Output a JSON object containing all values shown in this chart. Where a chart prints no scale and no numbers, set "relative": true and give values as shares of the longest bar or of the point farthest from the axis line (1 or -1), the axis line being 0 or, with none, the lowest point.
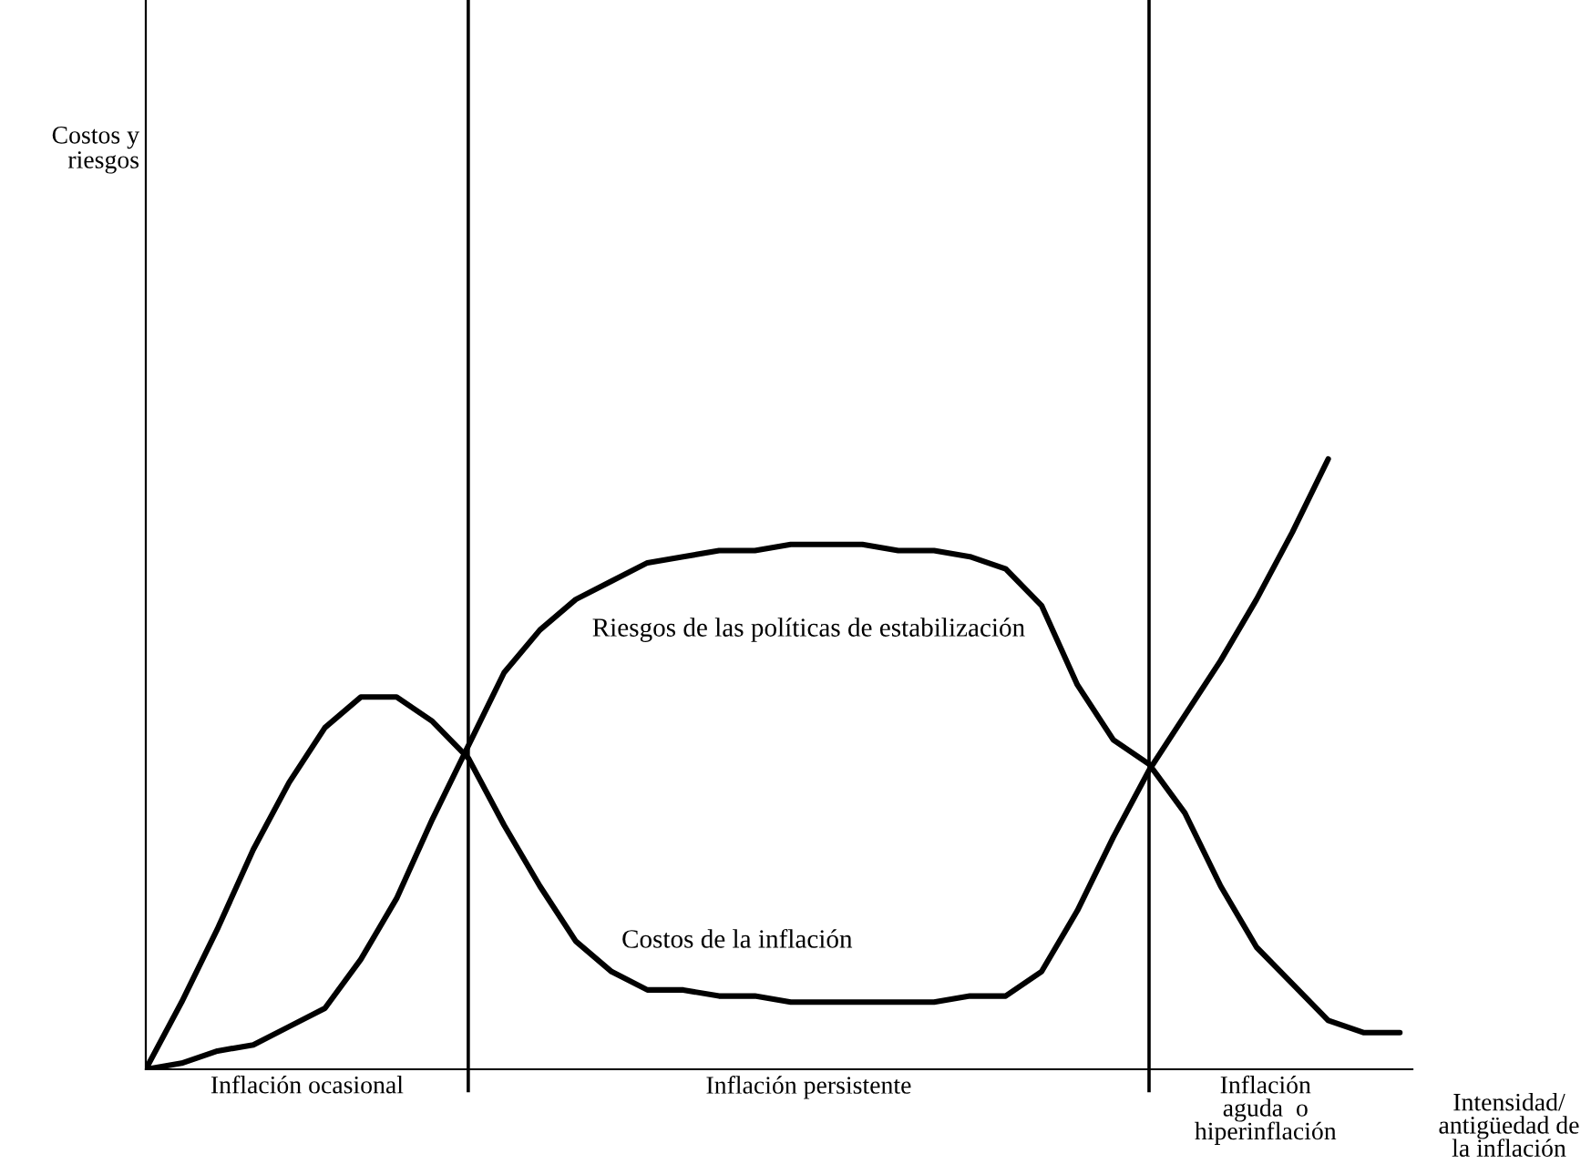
{
  "chart_data": {
    "type": "line",
    "relative": true,
    "xlabel": "Intensidad/\nantigüedad de\nla inflación",
    "annotations": [
      "Costos y\nriesgos",
      "Inflación ocasional",
      "Inflación persistente",
      "Inflación\naguda  o\nhiperinflación"
    ],
    "categories": [
      null,
      null,
      null,
      null,
      null,
      null,
      null,
      null,
      null,
      null,
      null,
      null,
      null,
      null,
      null,
      null,
      null,
      null,
      null,
      null,
      null,
      null,
      null,
      null,
      null,
      null,
      null,
      null,
      null,
      null,
      null,
      null,
      null,
      null,
      null,
      null
    ],
    "series": [
      {
        "name": "Costos de la inflación",
        "color": "#000000",
        "values": [
          0,
          0.11,
          0.23,
          0.36,
          0.47,
          0.56,
          0.61,
          0.61,
          0.57,
          0.51,
          0.4,
          0.3,
          0.21,
          0.16,
          0.13,
          0.13,
          0.12,
          0.12,
          0.11,
          0.11,
          0.11,
          0.11,
          0.11,
          0.12,
          0.12,
          0.16,
          0.26,
          0.38,
          0.49,
          0.58,
          0.67,
          0.77,
          0.88,
          1.0,
          null,
          null
        ]
      },
      {
        "name": "Riesgos de las políticas de estabilización",
        "color": "#000000",
        "values": [
          0,
          0.01,
          0.03,
          0.04,
          0.07,
          0.1,
          0.18,
          0.28,
          0.41,
          0.53,
          0.65,
          0.72,
          0.77,
          0.8,
          0.83,
          0.84,
          0.85,
          0.85,
          0.86,
          0.86,
          0.86,
          0.85,
          0.85,
          0.84,
          0.82,
          0.76,
          0.63,
          0.54,
          0.5,
          0.42,
          0.3,
          0.2,
          0.14,
          0.08,
          0.06,
          0.06
        ]
      }
    ]
  }
}
